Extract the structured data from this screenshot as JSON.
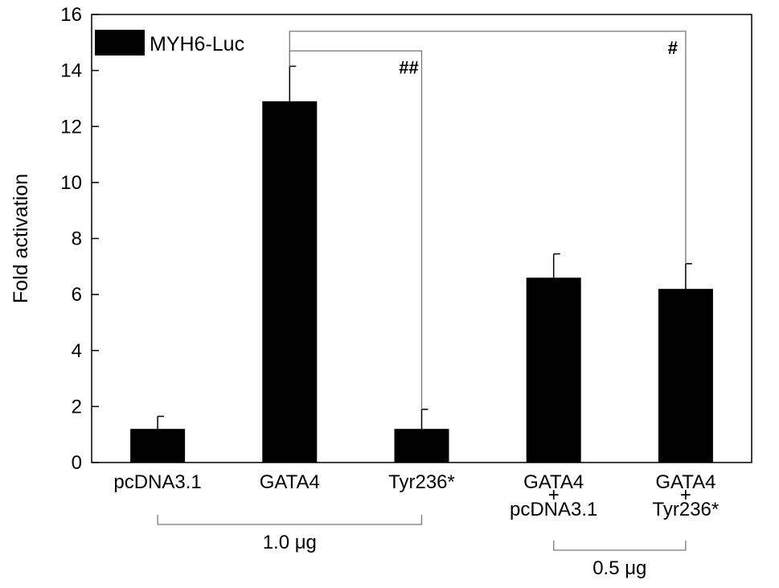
{
  "chart_data": {
    "type": "bar",
    "ylabel": "Fold activation",
    "xlabel": "",
    "ylim": [
      0,
      16
    ],
    "yticks": [
      0,
      2,
      4,
      6,
      8,
      10,
      12,
      14,
      16
    ],
    "grid": false,
    "legend": {
      "position": "top-left",
      "entries": [
        "MYH6-Luc"
      ]
    },
    "categories": [
      [
        "pcDNA3.1"
      ],
      [
        "GATA4"
      ],
      [
        "Tyr236*"
      ],
      [
        "GATA4",
        "+",
        "pcDNA3.1"
      ],
      [
        "GATA4",
        "+",
        "Tyr236*"
      ]
    ],
    "series": [
      {
        "name": "MYH6-Luc",
        "color": "#000000",
        "values": [
          1.2,
          12.9,
          1.2,
          6.6,
          6.2
        ],
        "errors": [
          0.45,
          1.25,
          0.7,
          0.85,
          0.9
        ]
      }
    ],
    "significance": [
      {
        "label": "##",
        "from": 1,
        "to": 2
      },
      {
        "label": "#",
        "from": 1,
        "to": 4
      }
    ],
    "groups": [
      {
        "label": "1.0 μg",
        "from": 0,
        "to": 2
      },
      {
        "label": "0.5 μg",
        "from": 3,
        "to": 4
      }
    ]
  }
}
